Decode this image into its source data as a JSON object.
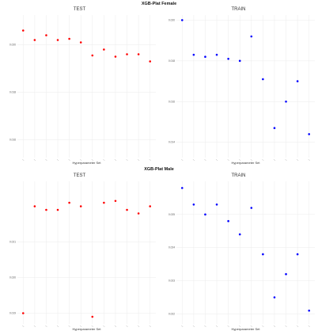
{
  "figure": {
    "sections": [
      {
        "title": "XGB-Plat Female"
      },
      {
        "title": "XGB-Plat Male"
      }
    ]
  },
  "colors": {
    "test": "#ff0000",
    "train": "#0000ff",
    "grid": "#ebebeb"
  },
  "chart_data": [
    {
      "type": "scatter",
      "title": "TEST",
      "xlabel": "Hyperparameter Set",
      "ylabel": "",
      "color": "#ff0000",
      "grid": true,
      "xlim": [
        0.5,
        12.5
      ],
      "ylim": [
        0.01525,
        0.02125
      ],
      "yticks": [
        0.016,
        0.018,
        0.02
      ],
      "ytick_labels": [
        "0.016",
        "0.018",
        "0.020"
      ],
      "x": [
        1,
        2,
        3,
        4,
        5,
        6,
        7,
        8,
        9,
        10,
        11,
        12,
        13
      ],
      "values": [
        0.0206,
        0.0202,
        0.0204,
        0.0202,
        0.02025,
        0.0201,
        0.01955,
        0.0198,
        0.0195,
        0.0196,
        0.0196,
        0.0193,
        0.0194
      ]
    },
    {
      "type": "scatter",
      "title": "TRAIN",
      "xlabel": "Hyperparameter Set",
      "ylabel": "",
      "color": "#0000ff",
      "grid": true,
      "xlim": [
        0.5,
        12.5
      ],
      "ylim": [
        0.01325,
        0.02025
      ],
      "yticks": [
        0.014,
        0.016,
        0.018,
        0.02
      ],
      "ytick_labels": [
        "0.014",
        "0.016",
        "0.018",
        "0.020"
      ],
      "x": [
        1,
        2,
        3,
        4,
        5,
        6,
        7,
        8,
        9,
        10,
        11,
        12,
        13
      ],
      "values": [
        0.02,
        0.0183,
        0.0182,
        0.0183,
        0.0181,
        0.018,
        0.0192,
        0.0171,
        0.0147,
        0.016,
        0.017,
        0.0144,
        0.014
      ]
    },
    {
      "type": "scatter",
      "title": "TEST",
      "xlabel": "Hyperparameter Set",
      "ylabel": "",
      "color": "#ff0000",
      "grid": true,
      "xlim": [
        0.5,
        12.5
      ],
      "ylim": [
        0.0187,
        0.0227
      ],
      "yticks": [
        0.019,
        0.02,
        0.021
      ],
      "ytick_labels": [
        "0.019",
        "0.020",
        "0.021"
      ],
      "x": [
        1,
        2,
        3,
        4,
        5,
        6,
        7,
        8,
        9,
        10,
        11,
        12,
        13
      ],
      "values": [
        0.019,
        0.022,
        0.0219,
        0.0219,
        0.0221,
        0.022,
        0.0189,
        0.0221,
        0.02215,
        0.0219,
        0.0218,
        0.022,
        0.022
      ]
    },
    {
      "type": "scatter",
      "title": "TRAIN",
      "xlabel": "Hyperparameter Set",
      "ylabel": "",
      "color": "#0000ff",
      "grid": true,
      "xlim": [
        0.5,
        12.5
      ],
      "ylim": [
        0.0217,
        0.026
      ],
      "yticks": [
        0.022,
        0.023,
        0.024,
        0.025
      ],
      "ytick_labels": [
        "0.022",
        "0.023",
        "0.024",
        "0.025"
      ],
      "x": [
        1,
        2,
        3,
        4,
        5,
        6,
        7,
        8,
        9,
        10,
        11,
        12,
        13
      ],
      "values": [
        0.0258,
        0.0253,
        0.025,
        0.0253,
        0.0248,
        0.0244,
        0.0252,
        0.0238,
        0.0225,
        0.0232,
        0.0238,
        0.0221,
        0.0216
      ]
    }
  ]
}
